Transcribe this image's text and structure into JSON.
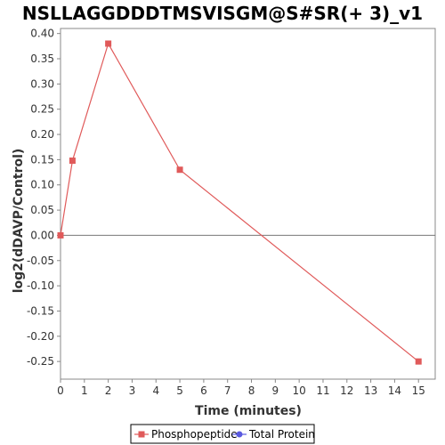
{
  "chart_data": {
    "type": "line",
    "title": "NSLLAGGDDDTMSVISGM@S#SR(+ 3)_v1",
    "xlabel": "Time (minutes)",
    "ylabel": "log2(dDAVP/Control)",
    "xlim": [
      0,
      15.7
    ],
    "ylim": [
      -0.285,
      0.41
    ],
    "x_ticks": [
      0,
      1,
      2,
      3,
      4,
      5,
      6,
      7,
      8,
      9,
      10,
      11,
      12,
      13,
      14,
      15
    ],
    "y_ticks": [
      0.4,
      0.35,
      0.3,
      0.25,
      0.2,
      0.15,
      0.1,
      0.05,
      0.0,
      -0.05,
      -0.1,
      -0.15,
      -0.2,
      -0.25
    ],
    "y_tick_labels": [
      "0.40",
      "0.35",
      "0.30",
      "0.25",
      "0.20",
      "0.15",
      "0.10",
      "0.05",
      "0.00",
      "-0.05",
      "-0.10",
      "-0.15",
      "-0.20",
      "-0.25"
    ],
    "zero_line": true,
    "grid": false,
    "legend_position": "bottom-center",
    "series": [
      {
        "name": "Phosphopeptide",
        "color": "#e05a5a",
        "marker": "square",
        "x": [
          0,
          0.5,
          2,
          5,
          15
        ],
        "y": [
          0.0,
          0.148,
          0.38,
          0.13,
          -0.25
        ]
      },
      {
        "name": "Total Protein",
        "color": "#5a5ae0",
        "marker": "circle",
        "x": [],
        "y": []
      }
    ]
  }
}
